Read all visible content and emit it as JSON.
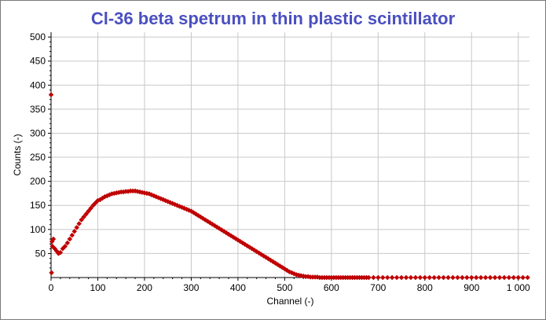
{
  "chart_data": {
    "type": "scatter",
    "title": "Cl-36 beta spetrum in thin plastic scintillator",
    "xlabel": "Channel (-)",
    "ylabel": "Counts (-)",
    "xlim": [
      0,
      1024
    ],
    "ylim": [
      0,
      510
    ],
    "x_ticks": [
      0,
      100,
      200,
      300,
      400,
      500,
      600,
      700,
      800,
      900,
      1000
    ],
    "x_tick_labels": [
      "0",
      "100",
      "200",
      "300",
      "400",
      "500",
      "600",
      "700",
      "800",
      "900",
      "1 000"
    ],
    "y_ticks": [
      50,
      100,
      150,
      200,
      250,
      300,
      350,
      400,
      450,
      500
    ],
    "y_tick_labels": [
      "50",
      "100",
      "150",
      "200",
      "250",
      "300",
      "350",
      "400",
      "450",
      "500"
    ],
    "grid": true,
    "legend": "none",
    "marker_color": "#c00000",
    "marker_shape": "diamond",
    "series": [
      {
        "x": [
          0,
          1,
          2,
          3,
          5,
          8,
          12,
          16,
          20,
          25,
          30,
          35,
          40,
          45,
          50,
          55,
          60,
          65,
          70,
          75,
          80,
          85,
          90,
          95,
          100,
          105,
          110,
          115,
          120,
          125,
          130,
          135,
          140,
          145,
          150,
          155,
          160,
          165,
          170,
          175,
          180,
          185,
          190,
          195,
          200,
          205,
          210,
          215,
          220,
          225,
          230,
          235,
          240,
          245,
          250,
          255,
          260,
          265,
          270,
          275,
          280,
          285,
          290,
          295,
          300,
          305,
          310,
          315,
          320,
          325,
          330,
          335,
          340,
          345,
          350,
          355,
          360,
          365,
          370,
          375,
          380,
          385,
          390,
          395,
          400,
          405,
          410,
          415,
          420,
          425,
          430,
          435,
          440,
          445,
          450,
          455,
          460,
          465,
          470,
          475,
          480,
          485,
          490,
          495,
          500,
          505,
          510,
          515,
          520,
          525,
          530,
          535,
          540,
          545,
          550,
          555,
          560,
          565,
          570,
          575,
          580,
          585,
          590,
          595,
          600,
          605,
          610,
          615,
          620,
          625,
          630,
          635,
          640,
          645,
          650,
          655,
          660,
          665,
          670,
          675,
          680,
          690,
          700,
          710,
          720,
          730,
          740,
          750,
          760,
          770,
          780,
          790,
          800,
          810,
          820,
          830,
          840,
          850,
          860,
          870,
          880,
          890,
          900,
          910,
          920,
          930,
          940,
          950,
          960,
          970,
          980,
          990,
          1000,
          1010,
          1020
        ],
        "y": [
          380,
          10,
          75,
          65,
          80,
          60,
          55,
          50,
          52,
          60,
          65,
          72,
          80,
          88,
          96,
          104,
          112,
          120,
          126,
          132,
          138,
          144,
          150,
          155,
          160,
          162,
          165,
          168,
          170,
          172,
          174,
          175,
          176,
          177,
          178,
          178,
          179,
          179,
          180,
          180,
          180,
          179,
          178,
          177,
          176,
          175,
          174,
          172,
          170,
          168,
          166,
          164,
          162,
          160,
          158,
          156,
          154,
          152,
          150,
          148,
          146,
          144,
          142,
          140,
          138,
          135,
          132,
          129,
          126,
          123,
          120,
          117,
          114,
          111,
          108,
          105,
          102,
          99,
          96,
          93,
          90,
          87,
          84,
          81,
          78,
          75,
          72,
          69,
          66,
          63,
          60,
          57,
          54,
          51,
          48,
          45,
          42,
          39,
          36,
          33,
          30,
          27,
          24,
          21,
          18,
          15,
          12,
          10,
          8,
          6,
          5,
          4,
          3,
          2,
          2,
          1,
          1,
          1,
          1,
          0,
          0,
          0,
          0,
          0,
          0,
          0,
          0,
          0,
          0,
          0,
          0,
          0,
          0,
          0,
          0,
          0,
          0,
          0,
          0,
          0,
          0,
          0,
          0,
          0,
          0,
          0,
          0,
          0,
          0,
          0,
          0,
          0,
          0,
          0,
          0,
          0,
          0,
          0,
          0,
          0,
          0,
          0,
          0,
          0,
          0,
          0,
          0,
          0,
          0,
          0,
          0,
          0,
          0,
          0,
          0
        ]
      }
    ]
  }
}
